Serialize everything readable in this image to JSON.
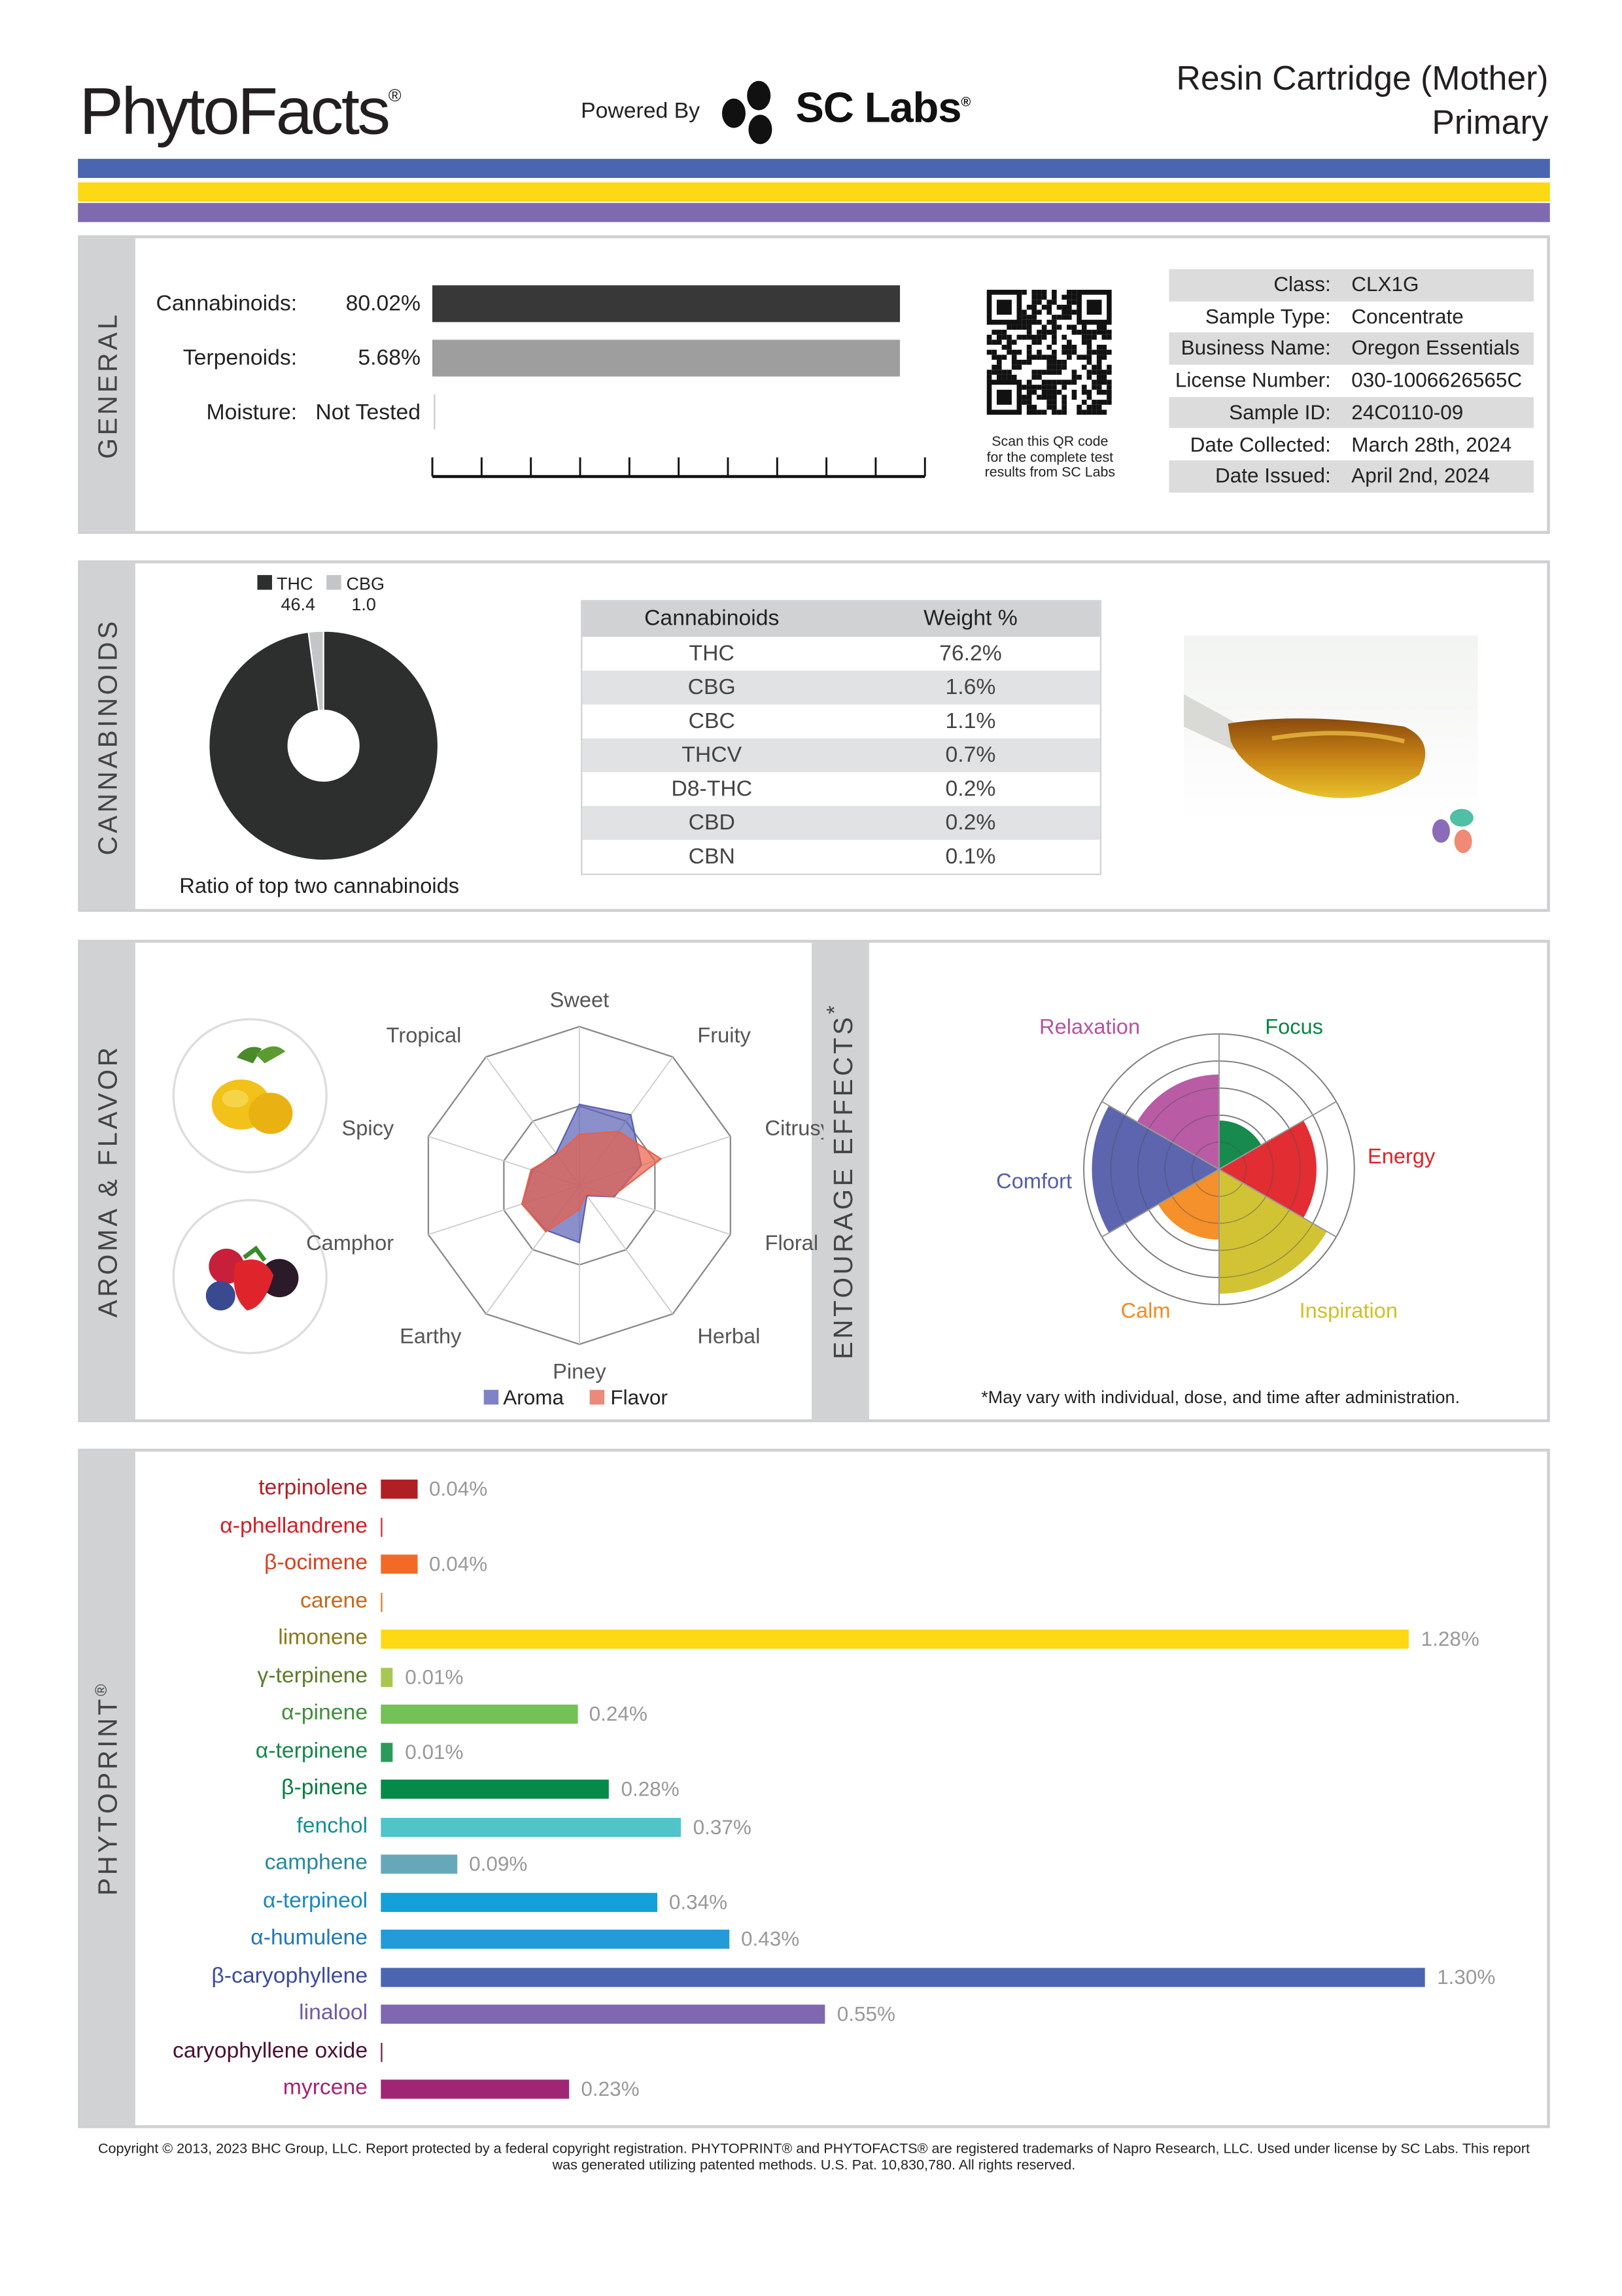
{
  "header": {
    "logo": "PhytoFacts",
    "logo_mark": "®",
    "powered_by": "Powered By",
    "brand": "SC Labs",
    "brand_mark": "®",
    "title": "Resin Cartridge (Mother)",
    "subtitle": "Primary"
  },
  "colors": {
    "stripe_blue": "#4a66b0",
    "stripe_yellow": "#fcd815",
    "stripe_purple": "#806aaf"
  },
  "general": {
    "section_label": "GENERAL",
    "cannabinoids": {
      "label": "Cannabinoids:",
      "value": "80.02%",
      "fraction": 0.8002
    },
    "terpenoids": {
      "label": "Terpenoids:",
      "value": "5.68%"
    },
    "moisture": {
      "label": "Moisture:",
      "value": "Not Tested"
    },
    "qr_caption": [
      "Scan this QR code",
      "for the complete test",
      "results from SC Labs"
    ],
    "info": [
      {
        "k": "Class:",
        "v": "CLX1G"
      },
      {
        "k": "Sample Type:",
        "v": "Concentrate"
      },
      {
        "k": "Business Name:",
        "v": "Oregon Essentials"
      },
      {
        "k": "License Number:",
        "v": "030-1006626565C"
      },
      {
        "k": "Sample ID:",
        "v": "24C0110-09"
      },
      {
        "k": "Date Collected:",
        "v": "March 28th, 2024"
      },
      {
        "k": "Date Issued:",
        "v": "April 2nd, 2024"
      }
    ]
  },
  "cannabinoids": {
    "section_label": "CANNABINOIDS",
    "ratio": {
      "legend": [
        {
          "name": "THC",
          "value": "46.4",
          "num": 46.4,
          "color": "#2d2f2f"
        },
        {
          "name": "CBG",
          "value": "1.0",
          "num": 1.0,
          "color": "#c4c5c6"
        }
      ],
      "caption": "Ratio of top two cannabinoids"
    },
    "table": {
      "headers": [
        "Cannabinoids",
        "Weight %"
      ],
      "rows": [
        [
          "THC",
          "76.2%"
        ],
        [
          "CBG",
          "1.6%"
        ],
        [
          "CBC",
          "1.1%"
        ],
        [
          "THCV",
          "0.7%"
        ],
        [
          "D8-THC",
          "0.2%"
        ],
        [
          "CBD",
          "0.2%"
        ],
        [
          "CBN",
          "0.1%"
        ]
      ]
    }
  },
  "aroma": {
    "section_label": "AROMA & FLAVOR",
    "axes": [
      "Sweet",
      "Fruity",
      "Citrusy",
      "Floral",
      "Herbal",
      "Piney",
      "Earthy",
      "Camphor",
      "Spicy",
      "Tropical"
    ],
    "series": [
      {
        "name": "Aroma",
        "color": "#5a5fb4",
        "values": [
          0.51,
          0.55,
          0.41,
          0.23,
          0.08,
          0.36,
          0.35,
          0.38,
          0.31,
          0.25
        ]
      },
      {
        "name": "Flavor",
        "color": "#e8604a",
        "values": [
          0.32,
          0.42,
          0.54,
          0.22,
          0.07,
          0.15,
          0.36,
          0.38,
          0.32,
          0.24
        ]
      }
    ]
  },
  "effects": {
    "section_label": "ENTOURAGE EFFECTS",
    "asterisk": "*",
    "max": 5,
    "items": [
      {
        "name": "Focus",
        "value": 1.8,
        "color": "#0b8443"
      },
      {
        "name": "Energy",
        "value": 3.6,
        "color": "#e02227"
      },
      {
        "name": "Inspiration",
        "value": 4.6,
        "color": "#d0c02a"
      },
      {
        "name": "Calm",
        "value": 2.6,
        "color": "#f58a1f"
      },
      {
        "name": "Comfort",
        "value": 4.7,
        "color": "#535daa"
      },
      {
        "name": "Relaxation",
        "value": 3.5,
        "color": "#b553a0"
      }
    ],
    "footnote": "*May vary with individual, dose, and time after administration."
  },
  "phytoprint": {
    "section_label": "PHYTOPRINT",
    "section_mark": "®",
    "terpenes": [
      {
        "name": "terpinolene",
        "value": 0.04,
        "label": "0.04%",
        "bar": "#b01f24",
        "text": "#b01f24"
      },
      {
        "name": "α-phellandrene",
        "value": 0,
        "label": "",
        "bar": "#d7262b",
        "text": "#d21f26"
      },
      {
        "name": "β-ocimene",
        "value": 0.04,
        "label": "0.04%",
        "bar": "#f26a26",
        "text": "#d8401f"
      },
      {
        "name": "carene",
        "value": 0,
        "label": "",
        "bar": "#e8792c",
        "text": "#c46a1d"
      },
      {
        "name": "limonene",
        "value": 1.28,
        "label": "1.28%",
        "bar": "#fcd815",
        "text": "#8a7a1c"
      },
      {
        "name": "γ-terpinene",
        "value": 0.01,
        "label": "0.01%",
        "bar": "#a6c852",
        "text": "#5c7d2a"
      },
      {
        "name": "α-pinene",
        "value": 0.24,
        "label": "0.24%",
        "bar": "#74c157",
        "text": "#3f8f3a"
      },
      {
        "name": "α-terpinene",
        "value": 0.01,
        "label": "0.01%",
        "bar": "#2c9a5a",
        "text": "#16884a"
      },
      {
        "name": "β-pinene",
        "value": 0.28,
        "label": "0.28%",
        "bar": "#07894a",
        "text": "#077d40"
      },
      {
        "name": "fenchol",
        "value": 0.37,
        "label": "0.37%",
        "bar": "#4fc4cb",
        "text": "#1a8f94"
      },
      {
        "name": "camphene",
        "value": 0.09,
        "label": "0.09%",
        "bar": "#66a8b9",
        "text": "#2a86a0"
      },
      {
        "name": "α-terpineol",
        "value": 0.34,
        "label": "0.34%",
        "bar": "#14a0d8",
        "text": "#1688c0"
      },
      {
        "name": "α-humulene",
        "value": 0.43,
        "label": "0.43%",
        "bar": "#239bd8",
        "text": "#1f78b8"
      },
      {
        "name": "β-caryophyllene",
        "value": 1.3,
        "label": "1.30%",
        "bar": "#4b65b0",
        "text": "#3b4a9c"
      },
      {
        "name": "linalool",
        "value": 0.55,
        "label": "0.55%",
        "bar": "#8068b0",
        "text": "#7059a6"
      },
      {
        "name": "caryophyllene oxide",
        "value": 0,
        "label": "",
        "bar": "#6a1f4a",
        "text": "#4a1034"
      },
      {
        "name": "myrcene",
        "value": 0.23,
        "label": "0.23%",
        "bar": "#a12575",
        "text": "#a12575"
      }
    ]
  },
  "footer": {
    "line1": "Copyright © 2013, 2023 BHC Group, LLC. Report protected by a federal copyright registration. PHYTOPRINT® and PHYTOFACTS® are registered trademarks of Napro Research, LLC. Used under license by SC Labs. This report",
    "line2": "was generated utilizing patented methods. U.S. Pat. 10,830,780. All rights reserved."
  }
}
